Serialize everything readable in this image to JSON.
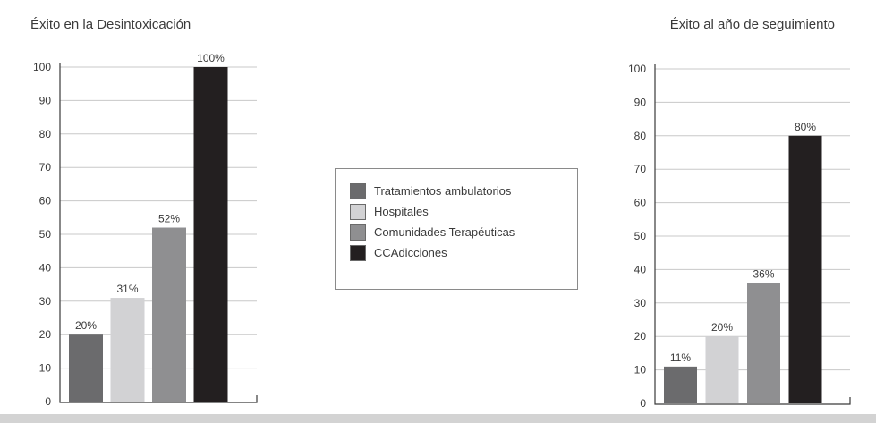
{
  "legend": {
    "items": [
      {
        "label": "Tratamientos ambulatorios",
        "color": "#6b6b6d"
      },
      {
        "label": "Hospitales",
        "color": "#d2d2d4"
      },
      {
        "label": "Comunidades Terapéuticas",
        "color": "#8f8f91"
      },
      {
        "label": "CCAdicciones",
        "color": "#231f20"
      }
    ]
  },
  "chart_data": [
    {
      "type": "bar",
      "title": "Éxito en la Desintoxicación",
      "categories": [
        "Tratamientos ambulatorios",
        "Hospitales",
        "Comunidades Terapéuticas",
        "CCAdicciones"
      ],
      "values": [
        20,
        31,
        52,
        100
      ],
      "data_labels": [
        "20%",
        "31%",
        "52%",
        "100%"
      ],
      "colors": [
        "#6b6b6d",
        "#d2d2d4",
        "#8f8f91",
        "#231f20"
      ],
      "ylim": [
        0,
        100
      ],
      "yticks": [
        0,
        10,
        20,
        30,
        40,
        50,
        60,
        70,
        80,
        90,
        100
      ],
      "grid": true,
      "legend": "center"
    },
    {
      "type": "bar",
      "title": "Éxito al año de seguimiento",
      "categories": [
        "Tratamientos ambulatorios",
        "Hospitales",
        "Comunidades Terapéuticas",
        "CCAdicciones"
      ],
      "values": [
        11,
        20,
        36,
        80
      ],
      "data_labels": [
        "11%",
        "20%",
        "36%",
        "80%"
      ],
      "colors": [
        "#6b6b6d",
        "#d2d2d4",
        "#8f8f91",
        "#231f20"
      ],
      "ylim": [
        0,
        100
      ],
      "yticks": [
        0,
        10,
        20,
        30,
        40,
        50,
        60,
        70,
        80,
        90,
        100
      ],
      "grid": true,
      "legend": "center"
    }
  ]
}
